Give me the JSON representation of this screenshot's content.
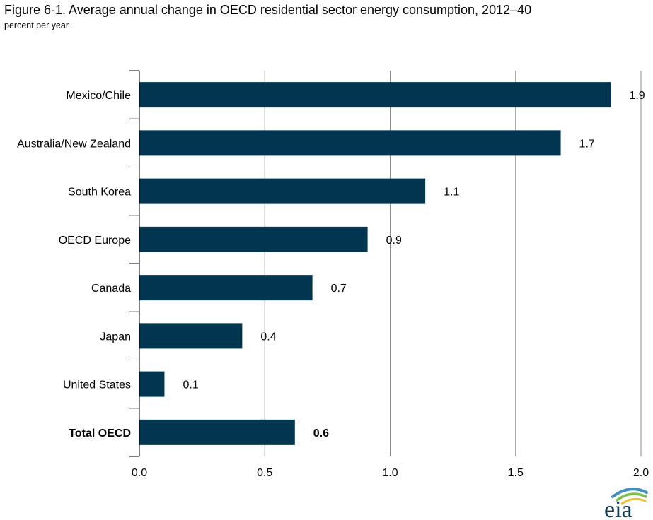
{
  "header": {
    "title": "Figure 6-1. Average annual change in OECD residential sector energy consumption, 2012–40",
    "subtitle": "percent per year"
  },
  "logo": {
    "text": "eia",
    "icon": "eia-logo"
  },
  "colors": {
    "bar": "#023650",
    "grid": "#8c8c8c",
    "axis": "#000000",
    "logo_text": "#0e3b5a",
    "logo_arc_outer": "#3d8fc4",
    "logo_arc_mid": "#7cbf4a",
    "logo_arc_inner": "#f2c12e"
  },
  "chart_data": {
    "type": "bar",
    "orientation": "horizontal",
    "categories": [
      "Mexico/Chile",
      "Australia/New Zealand",
      "South Korea",
      "OECD Europe",
      "Canada",
      "Japan",
      "United States",
      "Total OECD"
    ],
    "values": [
      1.88,
      1.68,
      1.14,
      0.91,
      0.69,
      0.41,
      0.1,
      0.62
    ],
    "data_labels": [
      "1.9",
      "1.7",
      "1.1",
      "0.9",
      "0.7",
      "0.4",
      "0.1",
      "0.6"
    ],
    "bold_categories": [
      "Total OECD"
    ],
    "xlim": [
      0,
      2.0
    ],
    "x_ticks": [
      "0.0",
      "0.5",
      "1.0",
      "1.5",
      "2.0"
    ],
    "tick_values": [
      0,
      0.5,
      1.0,
      1.5,
      2.0
    ],
    "grid": "vertical",
    "xlabel": "",
    "ylabel": ""
  }
}
